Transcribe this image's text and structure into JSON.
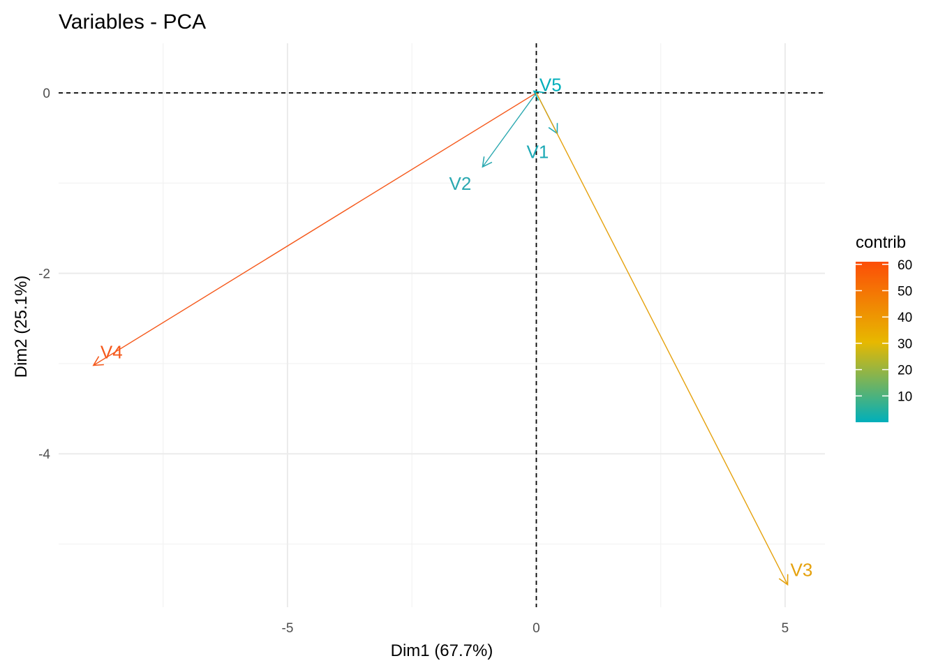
{
  "chart_data": {
    "type": "biplot-arrows",
    "title": "Variables - PCA",
    "xlabel": "Dim1 (67.7%)",
    "ylabel": "Dim2 (25.1%)",
    "xlim": [
      -9.6,
      5.8
    ],
    "ylim": [
      -5.7,
      0.55
    ],
    "x_ticks": [
      -5,
      0,
      5
    ],
    "x_tick_labels": [
      "-5",
      "0",
      "5"
    ],
    "y_ticks": [
      0,
      -2,
      -4
    ],
    "y_tick_labels": [
      "0",
      "-2",
      "-4"
    ],
    "x_minor_grid": [
      -7.5,
      -2.5,
      2.5
    ],
    "y_minor_grid": [
      -1,
      -3,
      -5
    ],
    "grid": true,
    "reference_lines": {
      "x": 0,
      "y": 0,
      "style": "dashed"
    },
    "legend": {
      "title": "contrib",
      "placement": "right",
      "min": 0,
      "max": 61,
      "ticks": [
        10,
        20,
        30,
        40,
        50,
        60
      ],
      "tick_labels": [
        "10",
        "20",
        "30",
        "40",
        "50",
        "60"
      ],
      "gradient": [
        "#00AFBB",
        "#E7B800",
        "#FC4E07"
      ]
    },
    "variables": [
      {
        "name": "V1",
        "x": 0.42,
        "y": -0.45,
        "contrib": 1.0,
        "color": "#1ca9b5"
      },
      {
        "name": "V2",
        "x": -1.08,
        "y": -0.82,
        "contrib": 3.0,
        "color": "#2aa8b0"
      },
      {
        "name": "V3",
        "x": 5.05,
        "y": -5.45,
        "contrib": 36.0,
        "color": "#e5a10c"
      },
      {
        "name": "V4",
        "x": -8.9,
        "y": -3.02,
        "contrib": 60.0,
        "color": "#f5581a"
      },
      {
        "name": "V5",
        "x": -0.05,
        "y": 0.02,
        "contrib": 0.5,
        "color": "#00afbb"
      }
    ]
  }
}
